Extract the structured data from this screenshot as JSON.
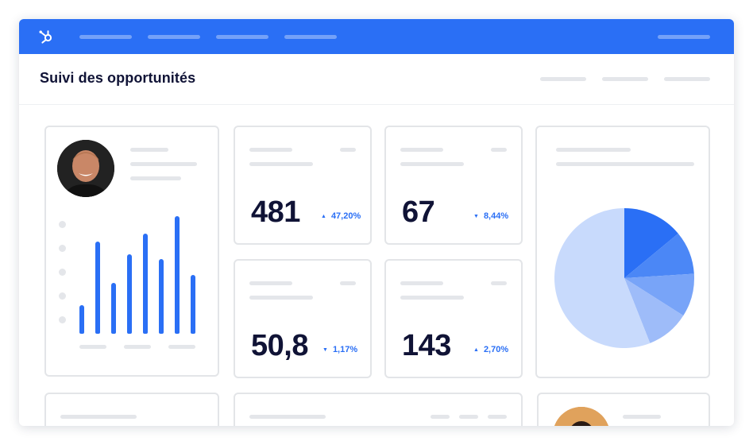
{
  "app": {
    "title": "Suivi des opportunités"
  },
  "colors": {
    "brand": "#2a6ff5",
    "text": "#101336",
    "placeholder": "#e4e6ea",
    "border": "#e3e5e8"
  },
  "icons": {
    "logo": "hubspot-logo-icon"
  },
  "profile_card": {
    "bar_chart": {
      "type": "bar",
      "values": [
        36,
        116,
        64,
        100,
        126,
        94,
        148,
        74
      ]
    }
  },
  "kpis": [
    {
      "value": "481",
      "delta": "47,20%",
      "direction": "up"
    },
    {
      "value": "67",
      "delta": "8,44%",
      "direction": "down"
    },
    {
      "value": "50,8",
      "delta": "1,17%",
      "direction": "down"
    },
    {
      "value": "143",
      "delta": "2,70%",
      "direction": "up"
    }
  ],
  "pie_card": {
    "pie": {
      "type": "pie",
      "values": [
        14,
        10,
        10,
        10,
        56
      ],
      "colors": [
        "#2a6ff5",
        "#4b87f6",
        "#78a4f8",
        "#9ebcf9",
        "#c8dafc"
      ]
    }
  },
  "chart_data": [
    {
      "type": "bar",
      "values": [
        36,
        116,
        64,
        100,
        126,
        94,
        148,
        74
      ]
    },
    {
      "type": "pie",
      "values": [
        14,
        10,
        10,
        10,
        56
      ]
    }
  ]
}
